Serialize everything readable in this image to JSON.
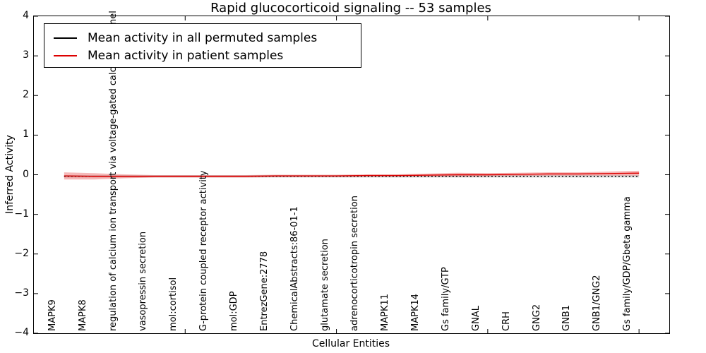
{
  "figure": {
    "title": "Rapid glucocorticoid signaling -- 53 samples",
    "xlabel": "Cellular Entities",
    "ylabel": "Inferred Activity"
  },
  "legend": {
    "items": [
      {
        "label": "Mean activity in all permuted samples",
        "color": "#000000"
      },
      {
        "label": "Mean activity in patient samples",
        "color": "#dd0000"
      }
    ]
  },
  "chart_data": {
    "type": "line",
    "title": "Rapid glucocorticoid signaling -- 53 samples",
    "xlabel": "Cellular Entities",
    "ylabel": "Inferred Activity",
    "xlim": [
      0,
      21
    ],
    "ylim": [
      -4,
      4
    ],
    "yticks": [
      -4,
      -3,
      -2,
      -1,
      0,
      1,
      2,
      3,
      4
    ],
    "xticks": [
      5,
      10,
      15,
      20
    ],
    "grid": false,
    "legend_position": "upper left",
    "categories": [
      "MAPK9",
      "MAPK8",
      "regulation of calcium ion transport via voltage-gated calcium channel",
      "vasopressin secretion",
      "mol:cortisol",
      "G-protein coupled receptor activity",
      "mol:GDP",
      "EntrezGene:2778",
      "ChemicalAbstracts:86-01-1",
      "glutamate secretion",
      "adrenocorticotropin secretion",
      "MAPK11",
      "MAPK14",
      "Gs family/GTP",
      "GNAL",
      "CRH",
      "GNG2",
      "GNB1",
      "GNB1/GNG2",
      "Gs family/GDP/Gbeta gamma"
    ],
    "series": [
      {
        "name": "Mean activity in all permuted samples",
        "color": "#000000",
        "style": "dotted",
        "values": [
          -0.04,
          -0.04,
          -0.04,
          -0.04,
          -0.04,
          -0.04,
          -0.04,
          -0.04,
          -0.04,
          -0.04,
          -0.04,
          -0.04,
          -0.04,
          -0.04,
          -0.04,
          -0.04,
          -0.04,
          -0.04,
          -0.04,
          -0.04
        ],
        "band_halfwidth": [
          0.03,
          0.03,
          0.03,
          0.03,
          0.03,
          0.03,
          0.03,
          0.03,
          0.03,
          0.03,
          0.03,
          0.03,
          0.03,
          0.03,
          0.03,
          0.03,
          0.03,
          0.03,
          0.03,
          0.03
        ],
        "band_color": "rgba(130,130,130,0.30)"
      },
      {
        "name": "Mean activity in patient samples",
        "color": "#dd0000",
        "style": "solid",
        "values": [
          -0.03,
          -0.04,
          -0.04,
          -0.04,
          -0.04,
          -0.04,
          -0.04,
          -0.03,
          -0.03,
          -0.03,
          -0.02,
          -0.02,
          -0.01,
          0.0,
          0.0,
          0.01,
          0.02,
          0.02,
          0.03,
          0.04
        ],
        "band_halfwidth": [
          0.09,
          0.08,
          0.05,
          0.03,
          0.03,
          0.03,
          0.03,
          0.03,
          0.03,
          0.03,
          0.03,
          0.03,
          0.04,
          0.05,
          0.04,
          0.04,
          0.04,
          0.04,
          0.05,
          0.06
        ],
        "band_color": "rgba(221,0,0,0.28)"
      }
    ]
  }
}
